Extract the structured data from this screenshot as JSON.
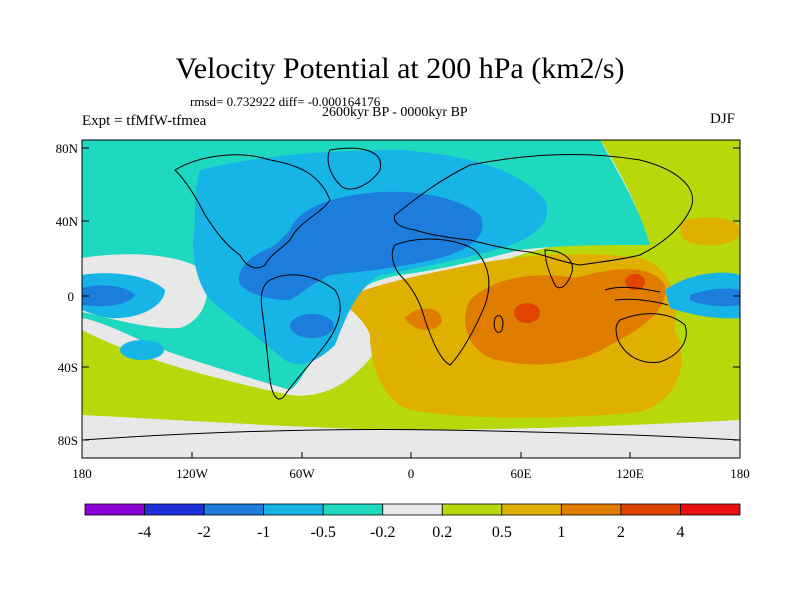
{
  "title": "Velocity Potential at 200 hPa (km2/s)",
  "stats": "rmsd= 0.732922 diff= -0.000164176",
  "period": "2600kyr BP - 0000kyr BP",
  "experiment": "Expt = tfMfW-tfmea",
  "season": "DJF",
  "map": {
    "lat_labels": [
      "80N",
      "40N",
      "0",
      "40S",
      "80S"
    ],
    "lon_labels": [
      "180",
      "120W",
      "60W",
      "0",
      "60E",
      "120E",
      "180"
    ]
  },
  "colorbar": {
    "labels": [
      "-4",
      "-2",
      "-1",
      "-0.5",
      "-0.2",
      "0.2",
      "0.5",
      "1",
      "2",
      "4"
    ],
    "colors": [
      "#8c00d8",
      "#2030d8",
      "#1c7ddc",
      "#17b4e6",
      "#1fd8c0",
      "#e8e8e8",
      "#b8d80c",
      "#e0b000",
      "#e07c00",
      "#e04400",
      "#e81010"
    ]
  }
}
